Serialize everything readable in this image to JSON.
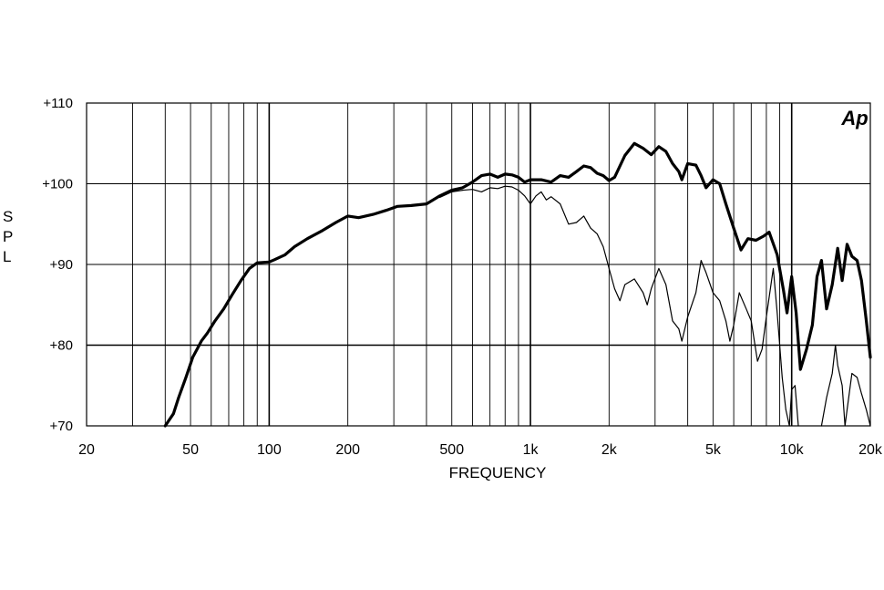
{
  "chart_data": {
    "type": "line",
    "xlabel": "FREQUENCY",
    "ylabel": "SPL",
    "x_scale": "log",
    "xlim": [
      20,
      20000
    ],
    "ylim": [
      70,
      110
    ],
    "x_ticks": [
      {
        "value": 20,
        "label": "20"
      },
      {
        "value": 50,
        "label": "50"
      },
      {
        "value": 100,
        "label": "100"
      },
      {
        "value": 200,
        "label": "200"
      },
      {
        "value": 500,
        "label": "500"
      },
      {
        "value": 1000,
        "label": "1k"
      },
      {
        "value": 2000,
        "label": "2k"
      },
      {
        "value": 5000,
        "label": "5k"
      },
      {
        "value": 10000,
        "label": "10k"
      },
      {
        "value": 20000,
        "label": "20k"
      }
    ],
    "y_ticks": [
      {
        "value": 110,
        "label": "+110"
      },
      {
        "value": 100,
        "label": "+100"
      },
      {
        "value": 90,
        "label": "+90"
      },
      {
        "value": 80,
        "label": "+80"
      },
      {
        "value": 70,
        "label": "+70"
      }
    ],
    "grid": true,
    "logo": "Ap",
    "series": [
      {
        "style": "thick",
        "points": [
          [
            40,
            70
          ],
          [
            43,
            71.5
          ],
          [
            45,
            73.5
          ],
          [
            48,
            76
          ],
          [
            51,
            78.5
          ],
          [
            53,
            79.5
          ],
          [
            55,
            80.5
          ],
          [
            58,
            81.5
          ],
          [
            62,
            83
          ],
          [
            67,
            84.5
          ],
          [
            72,
            86.2
          ],
          [
            78,
            88
          ],
          [
            84,
            89.5
          ],
          [
            90,
            90.2
          ],
          [
            100,
            90.3
          ],
          [
            105,
            90.6
          ],
          [
            115,
            91.2
          ],
          [
            125,
            92.2
          ],
          [
            140,
            93.2
          ],
          [
            160,
            94.2
          ],
          [
            180,
            95.2
          ],
          [
            200,
            96
          ],
          [
            220,
            95.8
          ],
          [
            250,
            96.2
          ],
          [
            280,
            96.7
          ],
          [
            310,
            97.2
          ],
          [
            350,
            97.3
          ],
          [
            400,
            97.5
          ],
          [
            450,
            98.5
          ],
          [
            500,
            99.2
          ],
          [
            550,
            99.5
          ],
          [
            600,
            100.2
          ],
          [
            650,
            101
          ],
          [
            700,
            101.2
          ],
          [
            750,
            100.8
          ],
          [
            800,
            101.2
          ],
          [
            850,
            101.1
          ],
          [
            900,
            100.8
          ],
          [
            950,
            100.2
          ],
          [
            1000,
            100.5
          ],
          [
            1100,
            100.5
          ],
          [
            1200,
            100.2
          ],
          [
            1300,
            101
          ],
          [
            1400,
            100.8
          ],
          [
            1500,
            101.5
          ],
          [
            1600,
            102.2
          ],
          [
            1700,
            102
          ],
          [
            1800,
            101.3
          ],
          [
            1900,
            101
          ],
          [
            2000,
            100.4
          ],
          [
            2100,
            100.8
          ],
          [
            2300,
            103.5
          ],
          [
            2500,
            105
          ],
          [
            2700,
            104.4
          ],
          [
            2900,
            103.6
          ],
          [
            3100,
            104.6
          ],
          [
            3300,
            104
          ],
          [
            3500,
            102.5
          ],
          [
            3700,
            101.5
          ],
          [
            3800,
            100.5
          ],
          [
            4000,
            102.5
          ],
          [
            4300,
            102.3
          ],
          [
            4500,
            101
          ],
          [
            4700,
            99.5
          ],
          [
            5000,
            100.5
          ],
          [
            5300,
            100
          ],
          [
            5600,
            97.5
          ],
          [
            6000,
            94.5
          ],
          [
            6400,
            91.8
          ],
          [
            6800,
            93.2
          ],
          [
            7300,
            93
          ],
          [
            7800,
            93.5
          ],
          [
            8200,
            94
          ],
          [
            8800,
            91.2
          ],
          [
            9300,
            86.8
          ],
          [
            9600,
            84
          ],
          [
            10000,
            88.5
          ],
          [
            10400,
            84
          ],
          [
            10800,
            77
          ],
          [
            11400,
            79.5
          ],
          [
            12000,
            82.5
          ],
          [
            12500,
            88.5
          ],
          [
            13000,
            90.5
          ],
          [
            13600,
            84.5
          ],
          [
            14300,
            87.5
          ],
          [
            15000,
            92
          ],
          [
            15600,
            88
          ],
          [
            16300,
            92.5
          ],
          [
            17000,
            91
          ],
          [
            17800,
            90.5
          ],
          [
            18500,
            88
          ],
          [
            19300,
            83
          ],
          [
            20000,
            78.5
          ]
        ]
      },
      {
        "style": "thin",
        "points": [
          [
            450,
            98.3
          ],
          [
            500,
            99
          ],
          [
            550,
            99.2
          ],
          [
            600,
            99.3
          ],
          [
            650,
            99
          ],
          [
            700,
            99.5
          ],
          [
            750,
            99.4
          ],
          [
            800,
            99.7
          ],
          [
            850,
            99.6
          ],
          [
            900,
            99.2
          ],
          [
            950,
            98.5
          ],
          [
            1000,
            97.5
          ],
          [
            1050,
            98.5
          ],
          [
            1100,
            99
          ],
          [
            1150,
            98
          ],
          [
            1200,
            98.4
          ],
          [
            1300,
            97.5
          ],
          [
            1400,
            95
          ],
          [
            1500,
            95.2
          ],
          [
            1600,
            96
          ],
          [
            1700,
            94.5
          ],
          [
            1800,
            93.8
          ],
          [
            1900,
            92.2
          ],
          [
            2000,
            89.5
          ],
          [
            2100,
            87
          ],
          [
            2200,
            85.5
          ],
          [
            2300,
            87.5
          ],
          [
            2500,
            88.2
          ],
          [
            2700,
            86.5
          ],
          [
            2800,
            85
          ],
          [
            2900,
            87
          ],
          [
            3100,
            89.5
          ],
          [
            3300,
            87.5
          ],
          [
            3500,
            83
          ],
          [
            3700,
            82
          ],
          [
            3800,
            80.5
          ],
          [
            4000,
            83.5
          ],
          [
            4300,
            86.5
          ],
          [
            4500,
            90.5
          ],
          [
            4700,
            89
          ],
          [
            5000,
            86.5
          ],
          [
            5300,
            85.5
          ],
          [
            5600,
            83
          ],
          [
            5800,
            80.5
          ],
          [
            6000,
            82.5
          ],
          [
            6300,
            86.5
          ],
          [
            6700,
            84.5
          ],
          [
            7000,
            83
          ],
          [
            7400,
            78
          ],
          [
            7700,
            79.5
          ],
          [
            8000,
            83.5
          ],
          [
            8500,
            89.5
          ],
          [
            8800,
            84
          ],
          [
            9200,
            76
          ],
          [
            9500,
            72
          ],
          [
            9800,
            70
          ],
          [
            10000,
            74.5
          ],
          [
            10300,
            75
          ],
          [
            10600,
            70
          ]
        ]
      },
      {
        "style": "thin",
        "points": [
          [
            13000,
            70
          ],
          [
            13600,
            73.5
          ],
          [
            14300,
            76.5
          ],
          [
            14700,
            80
          ],
          [
            15000,
            77.5
          ],
          [
            15600,
            75
          ],
          [
            16000,
            70
          ],
          [
            16300,
            72
          ],
          [
            17000,
            76.5
          ],
          [
            17800,
            76
          ],
          [
            18500,
            74
          ],
          [
            19300,
            72
          ],
          [
            20000,
            70
          ]
        ]
      }
    ]
  }
}
